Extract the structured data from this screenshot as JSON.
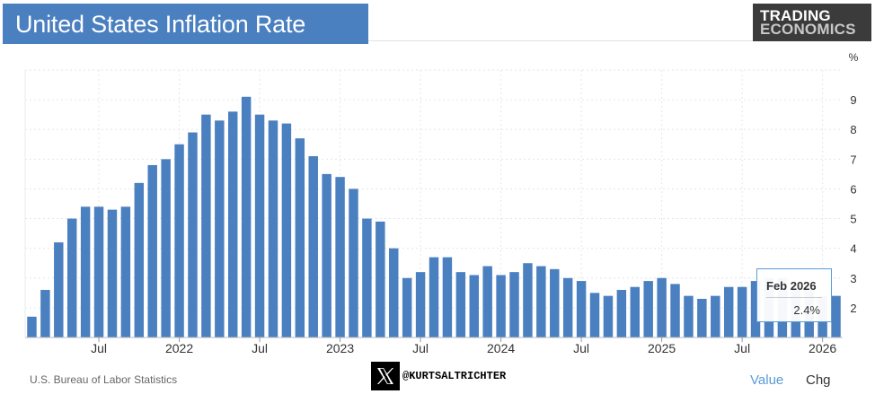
{
  "header": {
    "title": "United States Inflation Rate",
    "logo_line1": "TRADING",
    "logo_line2": "ECONOMICS"
  },
  "footer": {
    "source": "U.S. Bureau of Labor Statistics",
    "handle": "@KURTSALTRICHTER",
    "tab_value": "Value",
    "tab_chg": "Chg"
  },
  "tooltip": {
    "date": "Feb 2026",
    "value": "2.4%"
  },
  "colors": {
    "bar": "#4a7fc0",
    "grid": "#e6e6e6",
    "accent": "#5b9bd5"
  },
  "chart_data": {
    "type": "bar",
    "title": "United States Inflation Rate",
    "ylabel": "%",
    "ylim": [
      1,
      10
    ],
    "yticks": [
      2,
      3,
      4,
      5,
      6,
      7,
      8,
      9
    ],
    "grid": true,
    "x_tick_labels": [
      {
        "label": "Jul",
        "month": "2021-07"
      },
      {
        "label": "2022",
        "month": "2022-01"
      },
      {
        "label": "Jul",
        "month": "2022-07"
      },
      {
        "label": "2023",
        "month": "2023-01"
      },
      {
        "label": "Jul",
        "month": "2023-07"
      },
      {
        "label": "2024",
        "month": "2024-01"
      },
      {
        "label": "Jul",
        "month": "2024-07"
      },
      {
        "label": "2025",
        "month": "2025-01"
      },
      {
        "label": "Jul",
        "month": "2025-07"
      },
      {
        "label": "2026",
        "month": "2026-01"
      }
    ],
    "categories": [
      "2021-02",
      "2021-03",
      "2021-04",
      "2021-05",
      "2021-06",
      "2021-07",
      "2021-08",
      "2021-09",
      "2021-10",
      "2021-11",
      "2021-12",
      "2022-01",
      "2022-02",
      "2022-03",
      "2022-04",
      "2022-05",
      "2022-06",
      "2022-07",
      "2022-08",
      "2022-09",
      "2022-10",
      "2022-11",
      "2022-12",
      "2023-01",
      "2023-02",
      "2023-03",
      "2023-04",
      "2023-05",
      "2023-06",
      "2023-07",
      "2023-08",
      "2023-09",
      "2023-10",
      "2023-11",
      "2023-12",
      "2024-01",
      "2024-02",
      "2024-03",
      "2024-04",
      "2024-05",
      "2024-06",
      "2024-07",
      "2024-08",
      "2024-09",
      "2024-10",
      "2024-11",
      "2024-12",
      "2025-01",
      "2025-02",
      "2025-03",
      "2025-04",
      "2025-05",
      "2025-06",
      "2025-07",
      "2025-08",
      "2025-09",
      "2025-10",
      "2025-11",
      "2025-12",
      "2026-01",
      "2026-02"
    ],
    "values": [
      1.7,
      2.6,
      4.2,
      5.0,
      5.4,
      5.4,
      5.3,
      5.4,
      6.2,
      6.8,
      7.0,
      7.5,
      7.9,
      8.5,
      8.3,
      8.6,
      9.1,
      8.5,
      8.3,
      8.2,
      7.7,
      7.1,
      6.5,
      6.4,
      6.0,
      5.0,
      4.9,
      4.0,
      3.0,
      3.2,
      3.7,
      3.7,
      3.2,
      3.1,
      3.4,
      3.1,
      3.2,
      3.5,
      3.4,
      3.3,
      3.0,
      2.9,
      2.5,
      2.4,
      2.6,
      2.7,
      2.9,
      3.0,
      2.8,
      2.4,
      2.3,
      2.4,
      2.7,
      2.7,
      2.9,
      3.0,
      3.0,
      2.7,
      2.7,
      2.4,
      2.4
    ],
    "highlight": {
      "category": "2026-02",
      "value": 2.4
    }
  }
}
